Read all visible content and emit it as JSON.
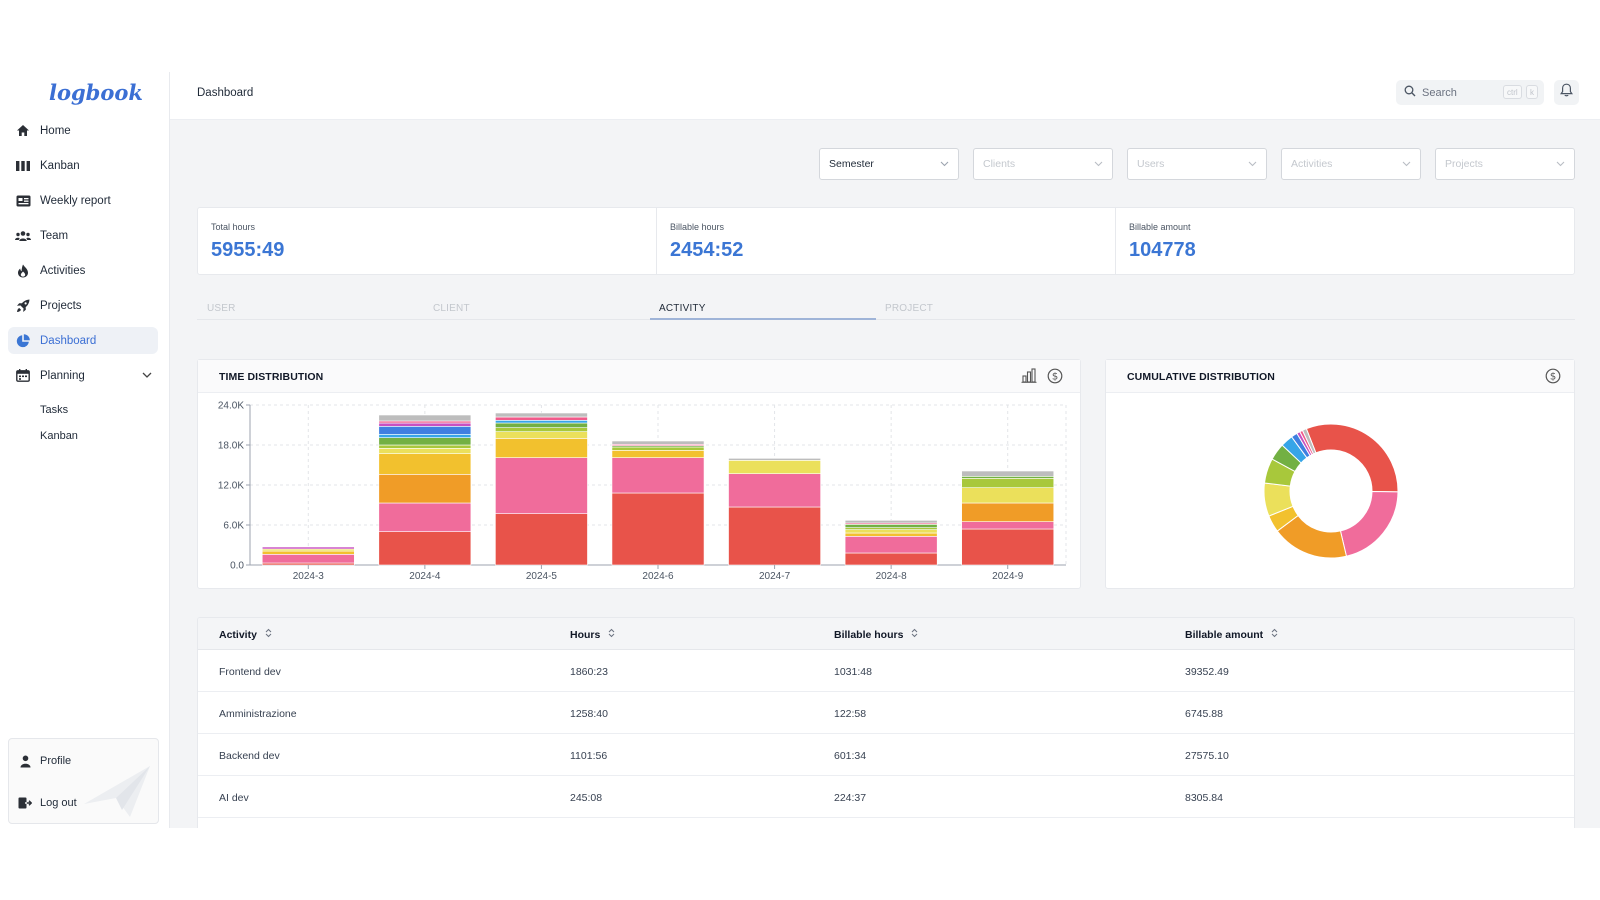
{
  "app": {
    "logo": "logbook"
  },
  "sidebar": {
    "items": [
      {
        "label": "Home",
        "icon": "home-icon"
      },
      {
        "label": "Kanban",
        "icon": "kanban-icon"
      },
      {
        "label": "Weekly report",
        "icon": "report-icon"
      },
      {
        "label": "Team",
        "icon": "team-icon"
      },
      {
        "label": "Activities",
        "icon": "flame-icon"
      },
      {
        "label": "Projects",
        "icon": "rocket-icon"
      },
      {
        "label": "Dashboard",
        "icon": "pie-chart-icon",
        "active": true
      },
      {
        "label": "Planning",
        "icon": "calendar-icon"
      }
    ],
    "planning_sub": [
      "Tasks",
      "Kanban"
    ],
    "profile": "Profile",
    "logout": "Log out"
  },
  "header": {
    "title": "Dashboard",
    "search_placeholder": "Search",
    "shortcut_ctrl": "ctrl",
    "shortcut_k": "k"
  },
  "filters": [
    {
      "label": "Semester",
      "selected": true
    },
    {
      "label": "Clients",
      "selected": false
    },
    {
      "label": "Users",
      "selected": false
    },
    {
      "label": "Activities",
      "selected": false
    },
    {
      "label": "Projects",
      "selected": false
    }
  ],
  "stats": [
    {
      "label": "Total hours",
      "value": "5955:49"
    },
    {
      "label": "Billable hours",
      "value": "2454:52"
    },
    {
      "label": "Billable amount",
      "value": "104778"
    }
  ],
  "tabs": [
    "USER",
    "CLIENT",
    "ACTIVITY",
    "PROJECT"
  ],
  "active_tab": "ACTIVITY",
  "time_card": {
    "title": "TIME DISTRIBUTION"
  },
  "cumulative_card": {
    "title": "CUMULATIVE DISTRIBUTION"
  },
  "colors": {
    "accent": "#3b76d4",
    "palette": [
      "#e8534a",
      "#f06c9b",
      "#f09c27",
      "#f2c12e",
      "#ebe05b",
      "#a8c83b",
      "#72b043",
      "#36a5e8",
      "#3f7fe0",
      "#c850c0",
      "#f05a8a",
      "#bdbdbd"
    ]
  },
  "chart_data": [
    {
      "type": "bar",
      "stacked": true,
      "categories": [
        "2024-3",
        "2024-4",
        "2024-5",
        "2024-6",
        "2024-7",
        "2024-8",
        "2024-9"
      ],
      "ylim": [
        0,
        24000
      ],
      "y_ticks": [
        "0.0",
        "6.0K",
        "12.0K",
        "18.0K",
        "24.0K"
      ],
      "y_tick_values": [
        0,
        6000,
        12000,
        18000,
        24000
      ],
      "grid": true,
      "series": [
        {
          "values": [
            300,
            5000,
            7700,
            10800,
            8700,
            1800,
            5400
          ]
        },
        {
          "values": [
            1300,
            4300,
            8400,
            5300,
            5000,
            2500,
            1100
          ]
        },
        {
          "values": [
            0,
            4300,
            0,
            0,
            0,
            0,
            2800
          ]
        },
        {
          "values": [
            500,
            3100,
            2900,
            1100,
            0,
            500,
            0
          ]
        },
        {
          "values": [
            300,
            800,
            1000,
            0,
            2000,
            500,
            2300
          ]
        },
        {
          "values": [
            0,
            500,
            600,
            500,
            0,
            300,
            1400
          ]
        },
        {
          "values": [
            0,
            1100,
            700,
            200,
            0,
            500,
            300
          ]
        },
        {
          "values": [
            0,
            500,
            400,
            0,
            0,
            0,
            0
          ]
        },
        {
          "values": [
            0,
            1200,
            0,
            0,
            0,
            0,
            0
          ]
        },
        {
          "values": [
            300,
            500,
            0,
            0,
            0,
            0,
            0
          ]
        },
        {
          "values": [
            0,
            300,
            500,
            200,
            0,
            200,
            0
          ]
        },
        {
          "values": [
            0,
            900,
            600,
            500,
            300,
            400,
            800
          ]
        }
      ]
    },
    {
      "type": "pie",
      "donut": true,
      "values": [
        31.2,
        21.1,
        18.5,
        4.1,
        8.0,
        6.0,
        4.1,
        3.0,
        1.5,
        0.8,
        0.7,
        1.0
      ]
    }
  ],
  "table": {
    "columns": [
      "Activity",
      "Hours",
      "Billable hours",
      "Billable amount"
    ],
    "rows": [
      [
        "Frontend dev",
        "1860:23",
        "1031:48",
        "39352.49"
      ],
      [
        "Amministrazione",
        "1258:40",
        "122:58",
        "6745.88"
      ],
      [
        "Backend dev",
        "1101:56",
        "601:34",
        "27575.10"
      ],
      [
        "AI dev",
        "245:08",
        "224:37",
        "8305.84"
      ]
    ]
  }
}
